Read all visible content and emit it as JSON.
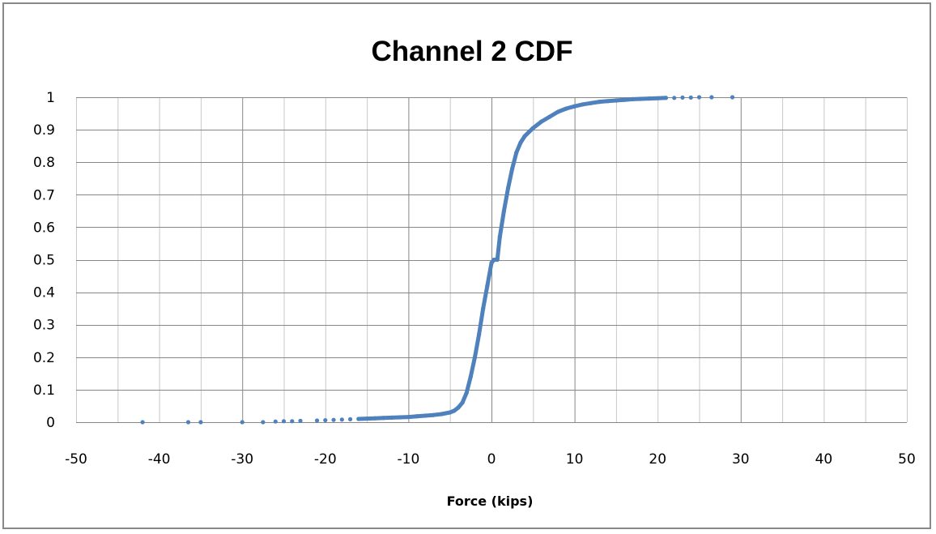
{
  "chart_data": {
    "type": "scatter",
    "title": "Channel 2 CDF",
    "xlabel": "Force (kips)",
    "ylabel": "",
    "xlim": [
      -50,
      50
    ],
    "ylim": [
      0,
      1
    ],
    "x_ticks": [
      "-50",
      "-40",
      "-30",
      "-20",
      "-10",
      "0",
      "10",
      "20",
      "30",
      "40",
      "50"
    ],
    "y_ticks": [
      "0",
      "0.1",
      "0.2",
      "0.3",
      "0.4",
      "0.5",
      "0.6",
      "0.7",
      "0.8",
      "0.9",
      "1"
    ],
    "grid": true,
    "legend": "none",
    "marker_color": "#4F81BD",
    "grid_major_color": "#878787",
    "grid_minor_color": "#C8C8C8",
    "series": [
      {
        "x": [
          -42,
          -36.5,
          -35,
          -30,
          -27.5,
          -26,
          -25,
          -24,
          -23,
          -21,
          -20,
          -19,
          -18,
          -17,
          -16,
          -15,
          -14,
          -13,
          -12,
          -11,
          -10,
          -9,
          -8,
          -7,
          -6,
          -5,
          -4.5,
          -4,
          -3.5,
          -3,
          -2.5,
          -2,
          -1.5,
          -1,
          -0.5,
          0,
          0.3,
          0.7,
          1,
          1.5,
          2,
          2.5,
          3,
          3.5,
          4,
          5,
          6,
          7,
          8,
          9,
          10,
          11,
          12,
          13,
          14,
          15,
          16,
          17,
          18,
          19,
          20,
          21,
          22,
          23,
          24,
          25,
          26.5,
          29
        ],
        "y": [
          0,
          0,
          0,
          0,
          0,
          0.002,
          0.003,
          0.003,
          0.004,
          0.005,
          0.006,
          0.007,
          0.008,
          0.009,
          0.01,
          0.011,
          0.012,
          0.013,
          0.014,
          0.015,
          0.016,
          0.018,
          0.02,
          0.022,
          0.025,
          0.03,
          0.035,
          0.045,
          0.06,
          0.09,
          0.14,
          0.2,
          0.27,
          0.35,
          0.42,
          0.49,
          0.5,
          0.5,
          0.57,
          0.65,
          0.72,
          0.78,
          0.83,
          0.86,
          0.88,
          0.905,
          0.925,
          0.94,
          0.955,
          0.965,
          0.972,
          0.978,
          0.982,
          0.986,
          0.988,
          0.99,
          0.992,
          0.994,
          0.995,
          0.996,
          0.997,
          0.998,
          0.998,
          0.999,
          0.999,
          1.0,
          1.0,
          1.0
        ]
      }
    ]
  }
}
